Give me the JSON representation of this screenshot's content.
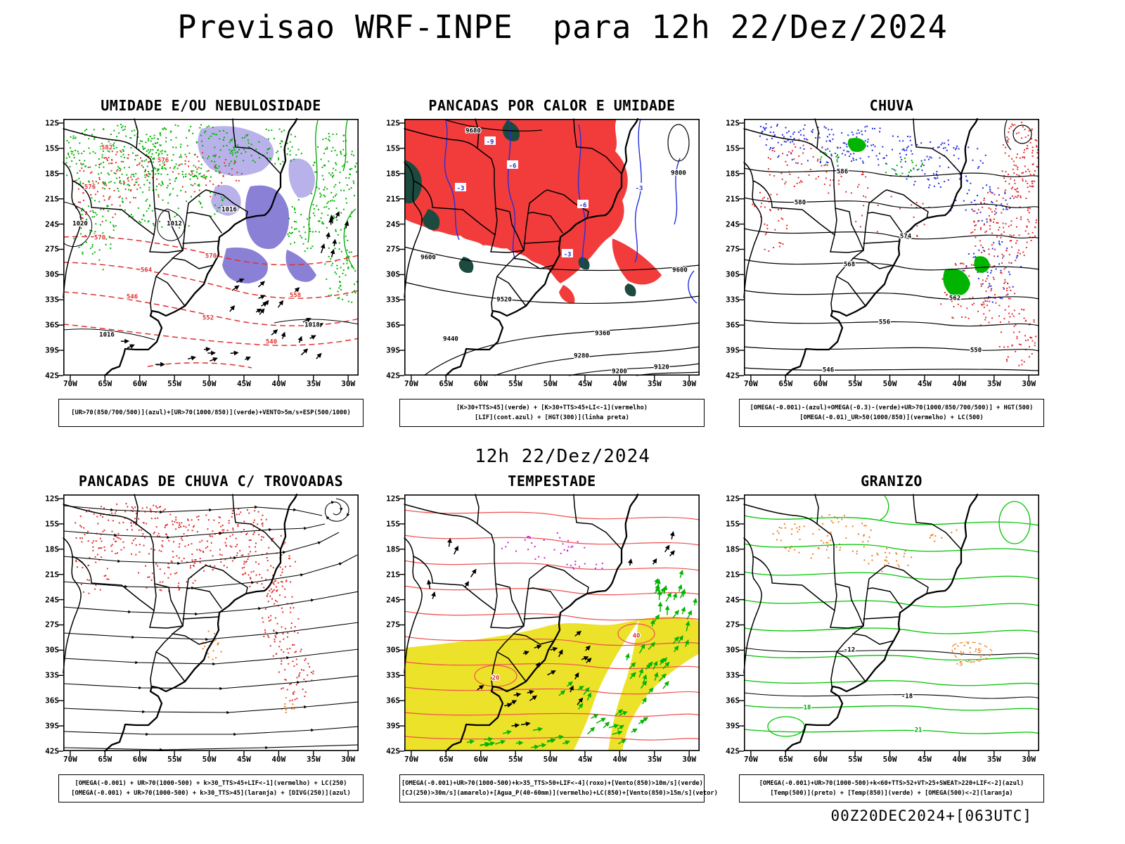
{
  "page": {
    "title": "Previsao WRF-INPE  para 12h 22/Dez/2024",
    "middle_label": "12h 22/Dez/2024",
    "footer_label": "00Z20DEC2024+[063UTC]"
  },
  "axes": {
    "lat_labels": [
      "12S",
      "15S",
      "18S",
      "21S",
      "24S",
      "27S",
      "30S",
      "33S",
      "36S",
      "39S",
      "42S"
    ],
    "lon_labels": [
      "70W",
      "65W",
      "60W",
      "55W",
      "50W",
      "45W",
      "40W",
      "35W",
      "30W"
    ]
  },
  "palette": {
    "red": "#e23030",
    "green": "#00b400",
    "blue": "#2430dc",
    "purple_shade": "#8a80d6",
    "light_purple_shade": "#b9b2ea",
    "yellow": "#ece22a",
    "orange": "#f08020",
    "dark_green": "#1c4a3e",
    "magenta": "#cc22cc"
  },
  "panels": [
    {
      "id": "umidade",
      "title": "UMIDADE E/OU NEBULOSIDADE",
      "caption_lines": [
        "[UR>70(850/700/500)](azul)+[UR>70(1000/850)](verde)+VENTO>5m/s+ESP(500/1000)"
      ],
      "map_labels": [
        [
          "582",
          62,
          40,
          "#e23030"
        ],
        [
          "576",
          142,
          58,
          "#e23030"
        ],
        [
          "576",
          38,
          96,
          "#e23030"
        ],
        [
          "570",
          210,
          194,
          "#e23030"
        ],
        [
          "570",
          52,
          168,
          "#e23030"
        ],
        [
          "564",
          118,
          214,
          "#e23030"
        ],
        [
          "558",
          330,
          250,
          "#e23030"
        ],
        [
          "552",
          206,
          282,
          "#e23030"
        ],
        [
          "546",
          98,
          252,
          "#e23030"
        ],
        [
          "540",
          296,
          316,
          "#e23030"
        ],
        [
          "1020",
          24,
          148,
          "#000000"
        ],
        [
          "1012",
          158,
          148,
          "#000000"
        ],
        [
          "1016",
          62,
          306,
          "#000000"
        ],
        [
          "1016",
          236,
          128,
          "#000000"
        ],
        [
          "1018",
          354,
          292,
          "#000000"
        ]
      ]
    },
    {
      "id": "pancadas-calor",
      "title": "PANCADAS POR CALOR E UMIDADE",
      "caption_lines": [
        "[K>30+TTS>45](verde) + [K>30+TTS>45+LI<-1](vermelho)",
        "[LIF](cont.azul) + [HGT(300)](linha preta)"
      ],
      "map_labels": [
        [
          "9680",
          98,
          16,
          "#000000"
        ],
        [
          "9600",
          34,
          196,
          "#000000"
        ],
        [
          "9600",
          392,
          214,
          "#000000"
        ],
        [
          "9520",
          142,
          256,
          "#000000"
        ],
        [
          "9440",
          66,
          312,
          "#000000"
        ],
        [
          "9360",
          282,
          304,
          "#000000"
        ],
        [
          "9280",
          252,
          336,
          "#000000"
        ],
        [
          "9200",
          306,
          358,
          "#000000"
        ],
        [
          "9120",
          366,
          352,
          "#000000"
        ],
        [
          "9800",
          390,
          76,
          "#000000"
        ],
        [
          "-3",
          80,
          98,
          "#2430dc",
          1
        ],
        [
          "-6",
          154,
          66,
          "#2430dc",
          1
        ],
        [
          "-6",
          254,
          122,
          "#2430dc",
          1
        ],
        [
          "-3",
          334,
          98,
          "#2430dc",
          1
        ],
        [
          "-3",
          232,
          192,
          "#2430dc",
          1
        ],
        [
          "-9",
          122,
          32,
          "#2430dc",
          1
        ]
      ]
    },
    {
      "id": "chuva",
      "title": "CHUVA",
      "caption_lines": [
        "[OMEGA(-0.001)-(azul)+OMEGA(-0.3)-(verde)+UR>70(1000/850/700/500)] + HGT(500)",
        "[OMEGA(-0.01)_UR>50(1000/850)](vermelho) + LC(500)"
      ],
      "map_labels": [
        [
          "586",
          140,
          74,
          "#000000"
        ],
        [
          "580",
          80,
          118,
          "#000000"
        ],
        [
          "574",
          230,
          166,
          "#000000"
        ],
        [
          "568",
          150,
          206,
          "#000000"
        ],
        [
          "562",
          300,
          254,
          "#000000"
        ],
        [
          "556",
          200,
          288,
          "#000000"
        ],
        [
          "550",
          330,
          328,
          "#000000"
        ],
        [
          "546",
          120,
          356,
          "#000000"
        ]
      ]
    },
    {
      "id": "trovoadas",
      "title": "PANCADAS DE CHUVA C/ TROVOADAS",
      "caption_lines": [
        "[OMEGA(-0.001) + UR>70(1000-500) + k>30_TTS>45+LIF<-1](vermelho) + LC(250)",
        "[OMEGA(-0.001) + UR>70(1000-500) + k>30_TTS>45](laranja) + [DIVG(250)](azul)"
      ],
      "map_labels": []
    },
    {
      "id": "tempestade",
      "title": "TEMPESTADE",
      "caption_lines": [
        "[OMEGA(-0.001)+UR>70(1000-500)+k>35_TTS>50+LIF<-4](roxo)+[Vento(850)>10m/s](verde)",
        "[CJ(250)>30m/s](amarelo)+[Agua_P(40-60mm)](vermelho)+LC(850)+[Vento(850)>15m/s](vetor)"
      ],
      "map_labels": [
        [
          "40",
          330,
          200,
          "#e23030"
        ],
        [
          "20",
          130,
          260,
          "#e23030"
        ]
      ]
    },
    {
      "id": "granizo",
      "title": "GRANIZO",
      "caption_lines": [
        "[OMEGA(-0.001)+UR>70(1000-500)+k<60+TTS>52+VT>25+SWEAT>220+LIF<-2](azul)",
        "[Temp(500)](preto) + [Temp(850)](verde) + [OMEGA(500)<-2](laranja)"
      ],
      "map_labels": [
        [
          "-12",
          150,
          220,
          "#000000"
        ],
        [
          "-18",
          232,
          286,
          "#000000"
        ],
        [
          "21",
          248,
          334,
          "#00a300"
        ],
        [
          "18",
          90,
          302,
          "#00a300"
        ],
        [
          "-5",
          332,
          222,
          "#f08020"
        ],
        [
          "-5",
          306,
          240,
          "#f08020"
        ]
      ]
    }
  ]
}
